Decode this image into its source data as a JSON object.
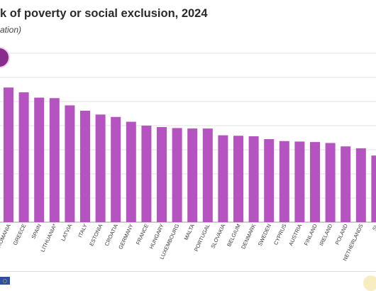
{
  "header": {
    "title": "k of poverty or social exclusion, 2024",
    "subtitle": "ation)"
  },
  "colors": {
    "bar": "#b553c0",
    "grid": "#d6d6d6",
    "badge": "#8a2b8e",
    "eu_flag": "#2c4ea3"
  },
  "chart_data": {
    "type": "bar",
    "title": "",
    "xlabel": "",
    "ylabel": "",
    "ylim": [
      0,
      35
    ],
    "grid": true,
    "categories": [
      "ROMANIA",
      "GREECE",
      "SPAIN",
      "LITHUANIA*",
      "LATVIA",
      "ITALY",
      "ESTONIA",
      "CROATIA",
      "GERMANY",
      "FRANCE",
      "HUNGARY",
      "LUXEMBOURG",
      "MALTA",
      "PORTUGAL",
      "SLOVAKIA",
      "BELGIUM",
      "DENMARK",
      "SWEDEN",
      "CYPRUS",
      "AUSTRIA",
      "FINLAND",
      "IRELAND",
      "POLAND",
      "NETHERLANDS",
      "SL"
    ],
    "values": [
      27.9,
      26.9,
      25.8,
      25.7,
      24.2,
      23.1,
      22.3,
      21.8,
      20.8,
      20.0,
      19.7,
      19.5,
      19.4,
      19.4,
      18.0,
      17.9,
      17.8,
      17.2,
      16.8,
      16.7,
      16.6,
      16.4,
      15.7,
      15.3,
      13.8
    ]
  }
}
